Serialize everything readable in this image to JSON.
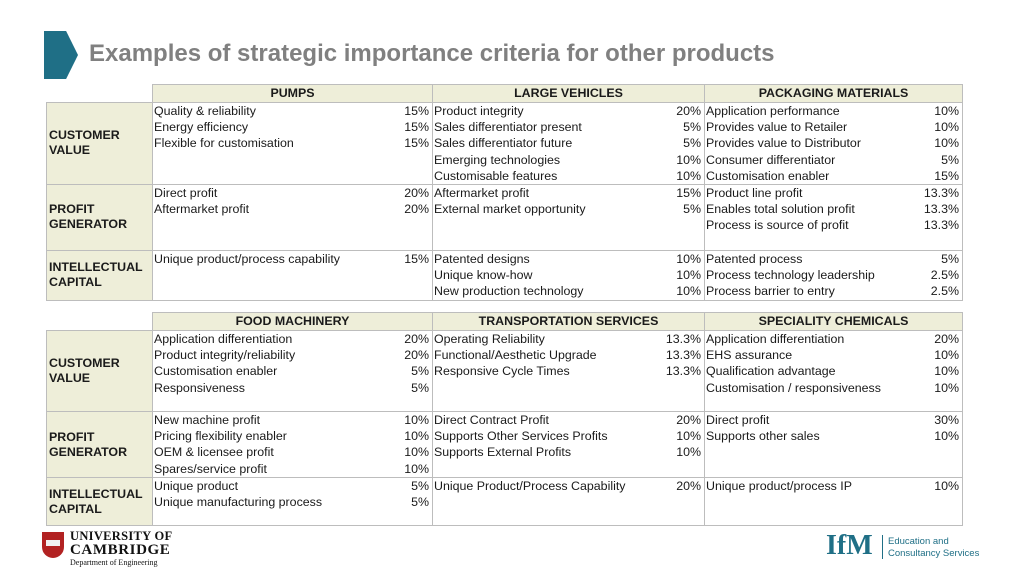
{
  "title": "Examples of strategic importance criteria for other products",
  "row_labels": {
    "customer_value": "CUSTOMER VALUE",
    "profit_generator": "PROFIT GENERATOR",
    "intellectual_capital": "INTELLECTUAL CAPITAL"
  },
  "tables": [
    {
      "columns": [
        {
          "header": "PUMPS",
          "customer_value": [
            {
              "label": "Quality & reliability",
              "pct": "15%"
            },
            {
              "label": "Energy efficiency",
              "pct": "15%"
            },
            {
              "label": "Flexible for customisation",
              "pct": "15%"
            }
          ],
          "profit_generator": [
            {
              "label": "Direct profit",
              "pct": "20%"
            },
            {
              "label": "Aftermarket profit",
              "pct": "20%"
            }
          ],
          "intellectual_capital": [
            {
              "label": "Unique product/process capability",
              "pct": "15%"
            }
          ]
        },
        {
          "header": "LARGE VEHICLES",
          "customer_value": [
            {
              "label": "Product integrity",
              "pct": "20%"
            },
            {
              "label": "Sales differentiator present",
              "pct": "5%"
            },
            {
              "label": "Sales differentiator future",
              "pct": "5%"
            },
            {
              "label": "Emerging technologies",
              "pct": "10%"
            },
            {
              "label": "Customisable features",
              "pct": "10%"
            }
          ],
          "profit_generator": [
            {
              "label": "Aftermarket profit",
              "pct": "15%"
            },
            {
              "label": "External market opportunity",
              "pct": "5%"
            }
          ],
          "intellectual_capital": [
            {
              "label": "Patented designs",
              "pct": "10%"
            },
            {
              "label": "Unique know-how",
              "pct": "10%"
            },
            {
              "label": "New production technology",
              "pct": "10%"
            }
          ]
        },
        {
          "header": "PACKAGING MATERIALS",
          "customer_value": [
            {
              "label": "Application performance",
              "pct": "10%"
            },
            {
              "label": "Provides value to Retailer",
              "pct": "10%"
            },
            {
              "label": "Provides value to Distributor",
              "pct": "10%"
            },
            {
              "label": "Consumer differentiator",
              "pct": "5%"
            },
            {
              "label": "Customisation enabler",
              "pct": "15%"
            }
          ],
          "profit_generator": [
            {
              "label": "Product line profit",
              "pct": "13.3%"
            },
            {
              "label": "Enables total solution profit",
              "pct": "13.3%"
            },
            {
              "label": "Process is source of profit",
              "pct": "13.3%"
            }
          ],
          "intellectual_capital": [
            {
              "label": "Patented process",
              "pct": "5%"
            },
            {
              "label": "Process technology leadership",
              "pct": "2.5%"
            },
            {
              "label": "Process barrier to entry",
              "pct": "2.5%"
            }
          ]
        }
      ]
    },
    {
      "columns": [
        {
          "header": "FOOD MACHINERY",
          "customer_value": [
            {
              "label": "Application differentiation",
              "pct": "20%"
            },
            {
              "label": "Product integrity/reliability",
              "pct": "20%"
            },
            {
              "label": "Customisation enabler",
              "pct": "5%"
            },
            {
              "label": "Responsiveness",
              "pct": "5%"
            }
          ],
          "profit_generator": [
            {
              "label": "New machine profit",
              "pct": "10%"
            },
            {
              "label": "Pricing flexibility enabler",
              "pct": "10%"
            },
            {
              "label": "OEM & licensee profit",
              "pct": "10%"
            },
            {
              "label": "Spares/service profit",
              "pct": "10%"
            }
          ],
          "intellectual_capital": [
            {
              "label": "Unique product",
              "pct": "5%"
            },
            {
              "label": "Unique manufacturing process",
              "pct": "5%"
            }
          ]
        },
        {
          "header": "TRANSPORTATION SERVICES",
          "customer_value": [
            {
              "label": "Operating Reliability",
              "pct": "13.3%"
            },
            {
              "label": "Functional/Aesthetic Upgrade",
              "pct": "13.3%"
            },
            {
              "label": "Responsive Cycle Times",
              "pct": "13.3%"
            }
          ],
          "profit_generator": [
            {
              "label": "Direct Contract Profit",
              "pct": "20%"
            },
            {
              "label": "Supports Other Services Profits",
              "pct": "10%"
            },
            {
              "label": "Supports External Profits",
              "pct": "10%"
            }
          ],
          "intellectual_capital": [
            {
              "label": "Unique Product/Process Capability",
              "pct": "20%"
            }
          ]
        },
        {
          "header": "SPECIALITY CHEMICALS",
          "customer_value": [
            {
              "label": "Application differentiation",
              "pct": "20%"
            },
            {
              "label": "EHS assurance",
              "pct": "10%"
            },
            {
              "label": "Qualification advantage",
              "pct": "10%"
            },
            {
              "label": "Customisation / responsiveness",
              "pct": "10%"
            }
          ],
          "profit_generator": [
            {
              "label": "Direct profit",
              "pct": "30%"
            },
            {
              "label": "Supports other sales",
              "pct": "10%"
            }
          ],
          "intellectual_capital": [
            {
              "label": "Unique product/process IP",
              "pct": "10%"
            }
          ]
        }
      ]
    }
  ],
  "logos": {
    "cambridge": {
      "line1": "UNIVERSITY OF",
      "line2": "CAMBRIDGE",
      "line3": "Department of Engineering"
    },
    "ifm": {
      "mark": "IfM",
      "line1": "Education and",
      "line2": "Consultancy Services"
    }
  },
  "colors": {
    "accent": "#1f6f86",
    "header_fill": "#eeeed9",
    "title": "#808080",
    "cambridge_red": "#b22222"
  }
}
